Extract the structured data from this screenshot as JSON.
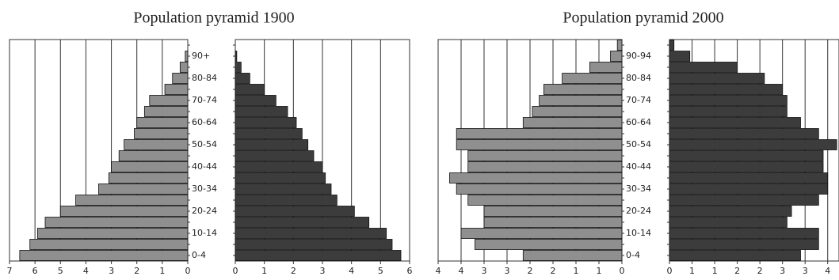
{
  "chart_data": [
    {
      "type": "pyramid",
      "title": "Population pyramid 1900",
      "categories": [
        "0-4",
        null,
        "10-14",
        null,
        "20-24",
        null,
        "30-34",
        null,
        "40-44",
        null,
        "50-54",
        null,
        "60-64",
        null,
        "70-74",
        null,
        "80-84",
        null,
        "90+",
        null
      ],
      "series": [
        {
          "color": "#8f8f8f",
          "values": [
            6.6,
            6.2,
            5.9,
            5.6,
            5.0,
            4.4,
            3.5,
            3.1,
            3.0,
            2.7,
            2.5,
            2.1,
            2.0,
            1.7,
            1.5,
            0.9,
            0.6,
            0.3,
            0.1,
            0
          ],
          "xlim": [
            7,
            0
          ],
          "xticks": [
            7,
            6,
            5,
            4,
            3,
            2,
            1,
            0
          ]
        },
        {
          "color": "#3c3c3c",
          "values": [
            5.7,
            5.4,
            5.2,
            4.6,
            4.1,
            3.5,
            3.3,
            3.1,
            3.0,
            2.7,
            2.5,
            2.3,
            2.1,
            1.8,
            1.4,
            1.0,
            0.5,
            0.2,
            0.05,
            0
          ],
          "xlim": [
            0,
            6
          ],
          "xticks": [
            0,
            1,
            2,
            3,
            4,
            5,
            6
          ]
        }
      ],
      "grid": true
    },
    {
      "type": "pyramid",
      "title": "Population pyramid 2000",
      "categories": [
        "0-4",
        null,
        "10-14",
        null,
        "20-24",
        null,
        "30-34",
        null,
        "40-44",
        null,
        "50-54",
        null,
        "60-64",
        null,
        "70-74",
        null,
        "80-84",
        null,
        "90-94",
        null
      ],
      "series": [
        {
          "color": "#8f8f8f",
          "values": [
            2.15,
            3.2,
            3.5,
            3.0,
            3.0,
            3.35,
            3.6,
            3.75,
            3.35,
            3.35,
            3.6,
            3.6,
            2.15,
            1.95,
            1.8,
            1.7,
            1.3,
            0.7,
            0.25,
            0.1
          ],
          "xlim": [
            4,
            0
          ],
          "xticks": [
            {
              "value": 4,
              "label": "4"
            },
            {
              "value": 3.5,
              "label": "4"
            },
            {
              "value": 3,
              "label": "3"
            },
            {
              "value": 2.5,
              "label": "3"
            },
            {
              "value": 2,
              "label": "2"
            },
            {
              "value": 1.5,
              "label": "2"
            },
            {
              "value": 1,
              "label": "1"
            },
            {
              "value": 0.5,
              "label": "1"
            },
            {
              "value": 0,
              "label": "0"
            }
          ]
        },
        {
          "color": "#3c3c3c",
          "values": [
            2.9,
            3.3,
            3.3,
            2.6,
            2.7,
            3.3,
            3.5,
            3.5,
            3.4,
            3.4,
            3.7,
            3.3,
            2.9,
            2.6,
            2.6,
            2.5,
            2.1,
            1.5,
            0.45,
            0.1
          ],
          "xlim": [
            0,
            3.75
          ],
          "xticks": [
            {
              "value": 0,
              "label": "0"
            },
            {
              "value": 0.5,
              "label": "1"
            },
            {
              "value": 1,
              "label": "1"
            },
            {
              "value": 1.5,
              "label": "2"
            },
            {
              "value": 2,
              "label": "2"
            },
            {
              "value": 2.5,
              "label": "3"
            },
            {
              "value": 3,
              "label": "3"
            },
            {
              "value": 3.5,
              "label": "4"
            }
          ]
        }
      ],
      "grid": true
    }
  ]
}
